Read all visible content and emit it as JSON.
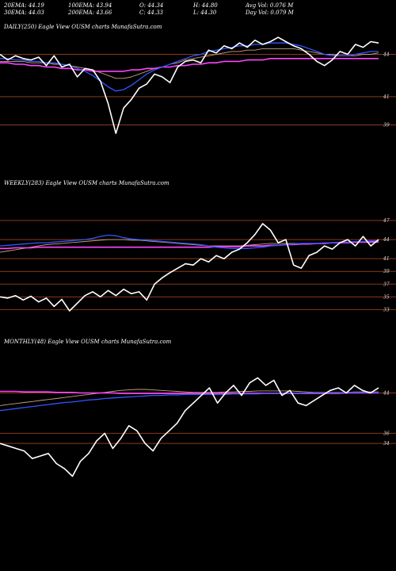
{
  "header": {
    "row1": [
      {
        "label": "20EMA: 44.19"
      },
      {
        "label": "100EMA: 43.94"
      },
      {
        "label": "O: 44.34"
      },
      {
        "label": "H: 44.80"
      },
      {
        "label": "Avg Vol: 0.076  M"
      }
    ],
    "row2": [
      {
        "label": "30EMA: 44.03"
      },
      {
        "label": "200EMA: 43.66"
      },
      {
        "label": "C: 44.33"
      },
      {
        "label": "L: 44.30"
      },
      {
        "label": "Day Vol: 0.079 M"
      }
    ]
  },
  "colors": {
    "background": "#000000",
    "price": "#ffffff",
    "ema_fast": "#3355ff",
    "ema_mid": "#ff44ff",
    "ema_slow": "#c8a080",
    "grid": "#8b3a1a"
  },
  "chart_data": [
    {
      "type": "line",
      "title": "DAILY(250) Eagle  View  OUSM charts MunafaSutra.com",
      "ylim": [
        38.3,
        45.6
      ],
      "gridlines": [
        44,
        41,
        39
      ],
      "tick_labels": [
        "44",
        "41",
        "39"
      ],
      "series": [
        {
          "role": "price",
          "values": [
            44.0,
            43.6,
            43.9,
            43.7,
            43.6,
            43.8,
            43.2,
            43.9,
            43.1,
            43.3,
            42.4,
            43.0,
            42.9,
            42.1,
            40.5,
            38.4,
            40.2,
            40.8,
            41.6,
            41.9,
            42.6,
            42.4,
            42.0,
            43.1,
            43.5,
            43.6,
            43.4,
            44.3,
            44.1,
            44.6,
            44.4,
            44.8,
            44.5,
            45.0,
            44.7,
            44.9,
            45.2,
            44.9,
            44.6,
            44.4,
            44.0,
            43.5,
            43.2,
            43.6,
            44.2,
            44.0,
            44.7,
            44.5,
            44.9,
            44.8
          ]
        },
        {
          "role": "ema",
          "values": [
            43.7,
            43.7,
            43.6,
            43.6,
            43.5,
            43.5,
            43.4,
            43.4,
            43.3,
            43.2,
            43.0,
            42.8,
            42.5,
            42.1,
            41.7,
            41.4,
            41.5,
            41.8,
            42.2,
            42.6,
            42.9,
            43.1,
            43.3,
            43.5,
            43.7,
            43.9,
            44.0,
            44.2,
            44.3,
            44.4,
            44.5,
            44.6,
            44.6,
            44.7,
            44.7,
            44.8,
            44.8,
            44.8,
            44.7,
            44.6,
            44.4,
            44.2,
            44.0,
            43.9,
            43.9,
            43.9,
            44.0,
            44.1,
            44.2,
            44.2
          ]
        },
        {
          "role": "ema_slow",
          "values": [
            43.5,
            43.5,
            43.5,
            43.5,
            43.4,
            43.4,
            43.4,
            43.3,
            43.3,
            43.2,
            43.1,
            43.0,
            42.9,
            42.7,
            42.5,
            42.3,
            42.3,
            42.4,
            42.6,
            42.8,
            43.0,
            43.1,
            43.3,
            43.4,
            43.6,
            43.7,
            43.8,
            43.9,
            44.0,
            44.1,
            44.2,
            44.2,
            44.3,
            44.3,
            44.4,
            44.4,
            44.4,
            44.4,
            44.4,
            44.3,
            44.2,
            44.1,
            44.0,
            44.0,
            43.9,
            43.9,
            43.9,
            44.0,
            44.0,
            44.1
          ]
        },
        {
          "role": "ema_mid",
          "values": [
            43.4,
            43.4,
            43.3,
            43.3,
            43.2,
            43.2,
            43.1,
            43.1,
            43.0,
            43.0,
            42.9,
            42.9,
            42.8,
            42.8,
            42.8,
            42.8,
            42.8,
            42.9,
            42.9,
            43.0,
            43.0,
            43.1,
            43.1,
            43.2,
            43.2,
            43.3,
            43.3,
            43.4,
            43.4,
            43.5,
            43.5,
            43.5,
            43.6,
            43.6,
            43.6,
            43.7,
            43.7,
            43.7,
            43.7,
            43.7,
            43.7,
            43.7,
            43.7,
            43.7,
            43.7,
            43.7,
            43.7,
            43.7,
            43.7,
            43.7
          ]
        }
      ]
    },
    {
      "type": "line",
      "title": "WEEKLY(283) Eagle  View  OUSM charts MunafaSutra.com",
      "ylim": [
        31.8,
        48.0
      ],
      "gridlines": [
        47,
        44,
        41,
        39,
        37,
        35,
        33
      ],
      "tick_labels": [
        "47",
        "44",
        "41",
        "39",
        "37",
        "35",
        "33"
      ],
      "series": [
        {
          "role": "price",
          "values": [
            35.0,
            34.8,
            35.2,
            34.5,
            35.1,
            34.2,
            34.8,
            33.5,
            34.6,
            32.8,
            34.0,
            35.2,
            35.8,
            35.0,
            36.0,
            35.2,
            36.2,
            35.5,
            35.8,
            34.5,
            37.0,
            38.0,
            38.8,
            39.5,
            40.2,
            40.0,
            41.0,
            40.5,
            41.5,
            41.0,
            42.0,
            42.5,
            43.5,
            44.8,
            46.5,
            45.5,
            43.5,
            44.0,
            40.0,
            39.5,
            41.5,
            42.0,
            43.0,
            42.5,
            43.5,
            44.0,
            43.0,
            44.5,
            43.0,
            44.0
          ]
        },
        {
          "role": "ema",
          "values": [
            43.0,
            43.1,
            43.2,
            43.3,
            43.4,
            43.5,
            43.5,
            43.6,
            43.7,
            43.8,
            43.9,
            44.0,
            44.2,
            44.5,
            44.7,
            44.6,
            44.3,
            44.1,
            44.0,
            43.9,
            43.8,
            43.7,
            43.6,
            43.5,
            43.4,
            43.3,
            43.2,
            43.0,
            42.8,
            42.7,
            42.6,
            42.6,
            42.6,
            42.7,
            42.8,
            43.0,
            43.1,
            43.2,
            43.3,
            43.4,
            43.4,
            43.4,
            43.5,
            43.5,
            43.6,
            43.6,
            43.7,
            43.7,
            43.8,
            43.8
          ]
        },
        {
          "role": "ema_slow",
          "values": [
            42.0,
            42.2,
            42.4,
            42.6,
            42.8,
            43.0,
            43.2,
            43.3,
            43.4,
            43.5,
            43.6,
            43.7,
            43.8,
            43.9,
            44.0,
            44.0,
            44.0,
            43.9,
            43.9,
            43.8,
            43.7,
            43.6,
            43.5,
            43.4,
            43.3,
            43.2,
            43.1,
            43.0,
            43.0,
            43.0,
            43.0,
            43.0,
            43.1,
            43.2,
            43.3,
            43.4,
            43.4,
            43.4,
            43.4,
            43.4,
            43.4,
            43.4,
            43.4,
            43.5,
            43.5,
            43.5,
            43.6,
            43.6,
            43.7,
            43.7
          ]
        },
        {
          "role": "ema_mid",
          "values": [
            42.6,
            42.6,
            42.7,
            42.7,
            42.7,
            42.8,
            42.8,
            42.8,
            42.8,
            42.8,
            42.8,
            42.8,
            42.8,
            42.8,
            42.8,
            42.8,
            42.8,
            42.8,
            42.8,
            42.8,
            42.8,
            42.8,
            42.8,
            42.8,
            42.8,
            42.8,
            42.8,
            42.8,
            42.9,
            42.9,
            42.9,
            42.9,
            43.0,
            43.0,
            43.0,
            43.1,
            43.1,
            43.2,
            43.2,
            43.3,
            43.3,
            43.4,
            43.4,
            43.5,
            43.5,
            43.5,
            43.6,
            43.6,
            43.6,
            43.6
          ]
        }
      ]
    },
    {
      "type": "line",
      "title": "MONTHLY(48) Eagle  View  OUSM charts MunafaSutra.com",
      "ylim": [
        26.0,
        48.0
      ],
      "gridlines": [
        44,
        36,
        34
      ],
      "tick_labels": [
        "44",
        "36",
        "34"
      ],
      "series": [
        {
          "role": "price",
          "values": [
            34.0,
            33.5,
            33.0,
            32.5,
            31.0,
            31.5,
            32.0,
            30.0,
            29.0,
            27.5,
            30.5,
            32.0,
            34.5,
            36.0,
            33.0,
            35.0,
            37.5,
            36.5,
            34.0,
            32.5,
            35.0,
            36.5,
            38.0,
            40.5,
            42.0,
            43.5,
            45.0,
            42.0,
            44.0,
            45.5,
            43.5,
            46.0,
            47.0,
            45.5,
            46.5,
            43.5,
            44.5,
            42.0,
            41.5,
            42.5,
            43.5,
            44.5,
            45.0,
            44.0,
            45.5,
            44.5,
            44.0,
            45.0
          ]
        },
        {
          "role": "ema",
          "values": [
            40.5,
            40.7,
            40.9,
            41.1,
            41.3,
            41.5,
            41.7,
            41.9,
            42.1,
            42.2,
            42.4,
            42.6,
            42.7,
            42.9,
            43.0,
            43.1,
            43.2,
            43.3,
            43.4,
            43.5,
            43.5,
            43.6,
            43.6,
            43.7,
            43.7,
            43.7,
            43.7,
            43.7,
            43.7,
            43.8,
            43.8,
            43.8,
            43.8,
            43.9,
            43.9,
            43.9,
            43.9,
            43.9,
            44.0,
            44.0,
            44.0,
            44.0,
            44.0,
            44.1,
            44.1,
            44.1,
            44.1,
            44.1
          ]
        },
        {
          "role": "ema_slow",
          "values": [
            41.5,
            41.7,
            41.9,
            42.1,
            42.3,
            42.5,
            42.7,
            42.9,
            43.1,
            43.3,
            43.5,
            43.7,
            43.9,
            44.1,
            44.3,
            44.5,
            44.6,
            44.7,
            44.7,
            44.6,
            44.5,
            44.4,
            44.3,
            44.2,
            44.1,
            44.1,
            44.1,
            44.1,
            44.2,
            44.2,
            44.3,
            44.3,
            44.4,
            44.4,
            44.4,
            44.4,
            44.4,
            44.3,
            44.2,
            44.1,
            44.1,
            44.1,
            44.1,
            44.1,
            44.2,
            44.2,
            44.2,
            44.2
          ]
        },
        {
          "role": "ema_mid",
          "values": [
            44.3,
            44.3,
            44.3,
            44.2,
            44.2,
            44.2,
            44.2,
            44.1,
            44.1,
            44.1,
            44.0,
            44.0,
            44.0,
            44.0,
            44.0,
            43.9,
            43.9,
            43.9,
            43.9,
            43.9,
            43.9,
            43.9,
            43.9,
            43.9,
            43.9,
            43.9,
            43.9,
            43.9,
            43.9,
            43.9,
            43.9,
            43.9,
            43.9,
            43.9,
            43.9,
            43.9,
            43.9,
            43.9,
            43.9,
            43.9,
            43.9,
            43.9,
            43.9,
            44.0,
            44.0,
            44.0,
            44.0,
            44.0
          ]
        }
      ]
    }
  ]
}
